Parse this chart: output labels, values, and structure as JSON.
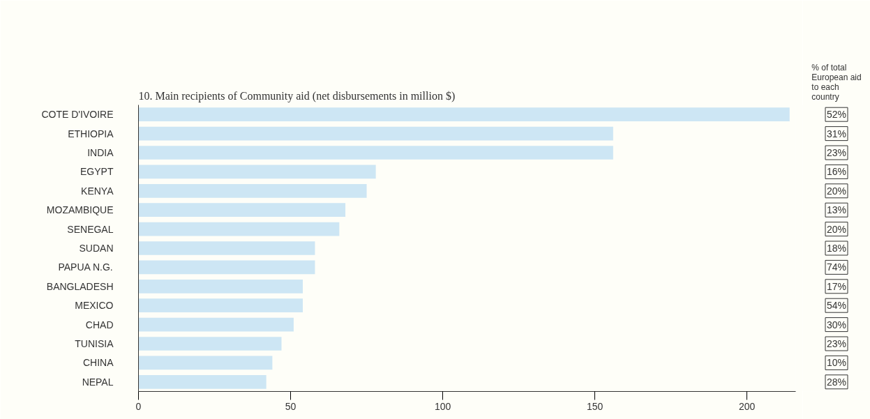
{
  "chart_data": {
    "type": "bar",
    "orientation": "horizontal",
    "title": "10. Main recipients of Community aid (net disbursements in million $)",
    "categories": [
      "COTE D'IVOIRE",
      "ETHIOPIA",
      "INDIA",
      "EGYPT",
      "KENYA",
      "MOZAMBIQUE",
      "SENEGAL",
      "SUDAN",
      "PAPUA N.G.",
      "BANGLADESH",
      "MEXICO",
      "CHAD",
      "TUNISIA",
      "CHINA",
      "NEPAL"
    ],
    "values": [
      214,
      156,
      156,
      78,
      75,
      68,
      66,
      58,
      58,
      54,
      54,
      51,
      47,
      44,
      42
    ],
    "color": "#cde6f4",
    "xlim": [
      0,
      216
    ],
    "xticks": [
      0,
      50,
      100,
      150,
      200
    ],
    "grid": false,
    "annotations": [
      "% of total European aid to each country",
      "52%",
      "31%",
      "23%",
      "16%",
      "20%",
      "13%",
      "20%",
      "18%",
      "74%",
      "17%",
      "54%",
      "30%",
      "23%",
      "10%",
      "28%"
    ]
  }
}
